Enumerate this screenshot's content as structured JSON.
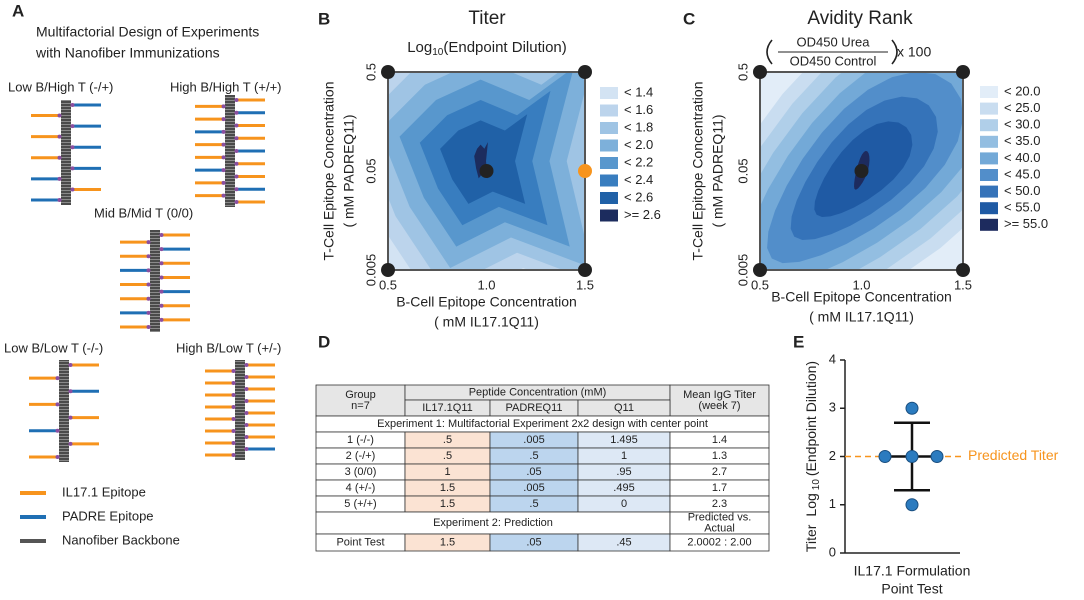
{
  "panel_a": {
    "letter": "A",
    "title": [
      "Multifactorial Design of Experiments",
      "with Nanofiber Immunizations"
    ],
    "designs": [
      "Low B/High T (-/+)",
      "High B/High T (+/+)",
      "Mid B/Mid T (0/0)",
      "Low B/Low T (-/-)",
      "High B/Low T (+/-)"
    ],
    "legend": [
      {
        "label": "IL17.1 Epitope",
        "color": "#f7941d"
      },
      {
        "label": "PADRE Epitope",
        "color": "#1f6fb4"
      },
      {
        "label": "Nanofiber Backbone",
        "color": "#555555"
      }
    ]
  },
  "chart_data": [
    {
      "type": "contour",
      "letter": "B",
      "title": "Titer",
      "subtitle": [
        "Log",
        "10",
        "(Endpoint Dilution)"
      ],
      "xlabel": [
        "B-Cell Epitope Concentration",
        "( mM IL17.1Q11)"
      ],
      "ylabel": [
        "T-Cell Epitope Concentration",
        "( mM PADREQ11)"
      ],
      "xlim": [
        0.5,
        1.5
      ],
      "xticks": [
        0.5,
        {
          "value": 1,
          "label": "1.0"
        },
        1.5
      ],
      "ylim": [
        0.005,
        0.5
      ],
      "yticks": [
        0.005,
        0.05,
        0.5
      ],
      "ylog": true,
      "levels": [
        {
          "value": 1.4,
          "label": "< 1.4",
          "color": "#d3e3f3"
        },
        {
          "value": 1.6,
          "label": "< 1.6",
          "color": "#bcd4ec"
        },
        {
          "value": 1.8,
          "label": "< 1.8",
          "color": "#9fc4e4"
        },
        {
          "value": 2.0,
          "label": "< 2.0",
          "color": "#7db0da"
        },
        {
          "value": 2.2,
          "label": "< 2.2",
          "color": "#5897cd"
        },
        {
          "value": 2.4,
          "label": "< 2.4",
          "color": "#387dbf"
        },
        {
          "value": 2.6,
          "label": "< 2.6",
          "color": "#2061a7"
        },
        {
          "value": 2.6,
          "label": ">= 2.6",
          "color": "#1c2c5e"
        }
      ],
      "points": {
        "x": [
          0.5,
          0.5,
          1.0,
          1.5,
          1.5
        ],
        "y": [
          0.005,
          0.5,
          0.05,
          0.005,
          0.5
        ],
        "color": "#222222"
      },
      "prediction": {
        "x": 1.5,
        "y": 0.05,
        "color": "#f7941d"
      }
    },
    {
      "type": "contour",
      "letter": "C",
      "title": "Avidity Rank",
      "subtitle": {
        "numerator": "OD450 Urea",
        "denominator": "OD450 Control",
        "multiplier": "x 100"
      },
      "xlabel": [
        "B-Cell Epitope Concentration",
        "( mM IL17.1Q11)"
      ],
      "ylabel": [
        "T-Cell Epitope Concentration",
        "( mM PADREQ11)"
      ],
      "xlim": [
        0.5,
        1.5
      ],
      "xticks": [
        0.5,
        {
          "value": 1,
          "label": "1.0"
        },
        1.5
      ],
      "ylim": [
        0.005,
        0.5
      ],
      "yticks": [
        0.005,
        0.05,
        0.5
      ],
      "ylog": true,
      "levels": [
        {
          "value": 20,
          "label": "< 20.0",
          "color": "#e2edf8"
        },
        {
          "value": 25,
          "label": "< 25.0",
          "color": "#c9ddf0"
        },
        {
          "value": 30,
          "label": "< 30.0",
          "color": "#b0cfe9"
        },
        {
          "value": 35,
          "label": "< 35.0",
          "color": "#93bee1"
        },
        {
          "value": 40,
          "label": "< 40.0",
          "color": "#73a9d7"
        },
        {
          "value": 45,
          "label": "< 45.0",
          "color": "#528eca"
        },
        {
          "value": 50,
          "label": "< 50.0",
          "color": "#3573b9"
        },
        {
          "value": 55,
          "label": "< 55.0",
          "color": "#1f5aa4"
        },
        {
          "value": 55,
          "label": ">= 55.0",
          "color": "#1d2b5e"
        }
      ],
      "points": {
        "x": [
          0.5,
          0.5,
          1.0,
          1.5,
          1.5
        ],
        "y": [
          0.005,
          0.5,
          0.05,
          0.005,
          0.5
        ],
        "color": "#222222"
      }
    },
    {
      "type": "scatter",
      "letter": "E",
      "ylabel": [
        "Titer",
        "Log",
        "10",
        "(Endpoint Dilution)"
      ],
      "xlabel": [
        "IL17.1 Formulation",
        "Point Test"
      ],
      "ylim": [
        0,
        4
      ],
      "yticks": [
        0,
        1,
        2,
        3,
        4
      ],
      "values": [
        3,
        2,
        2,
        2,
        1
      ],
      "color": "#2b7bbf",
      "mean": 2,
      "error": 0.7,
      "predicted": {
        "value": 2,
        "label": "Predicted Titer",
        "color": "#f7941d"
      }
    }
  ],
  "table": {
    "letter": "D",
    "group": [
      "Group",
      "n=7"
    ],
    "peptide": "Peptide Concentration (mM)",
    "columns": [
      "IL17.1Q11",
      "PADREQ11",
      "Q11"
    ],
    "mean": [
      "Mean IgG Titer",
      "(week 7)"
    ],
    "experiment1": "Experiment 1: Multifactorial Experiment 2x2 design with center point",
    "rows": [
      [
        "1 (-/-)",
        ".5",
        ".005",
        "1.495",
        "1.4"
      ],
      [
        "2 (-/+)",
        ".5",
        ".5",
        "1",
        "1.3"
      ],
      [
        "3 (0/0)",
        "1",
        ".05",
        ".95",
        "2.7"
      ],
      [
        "4 (+/-)",
        "1.5",
        ".005",
        ".495",
        "1.7"
      ],
      [
        "5 (+/+)",
        "1.5",
        ".5",
        "0",
        "2.3"
      ]
    ],
    "experiment2": "Experiment 2: Prediction",
    "predicted": [
      "Predicted  vs.",
      "Actual"
    ],
    "point_test": [
      "Point Test",
      "1.5",
      ".05",
      ".45",
      "2.0002 : 2.00"
    ]
  }
}
